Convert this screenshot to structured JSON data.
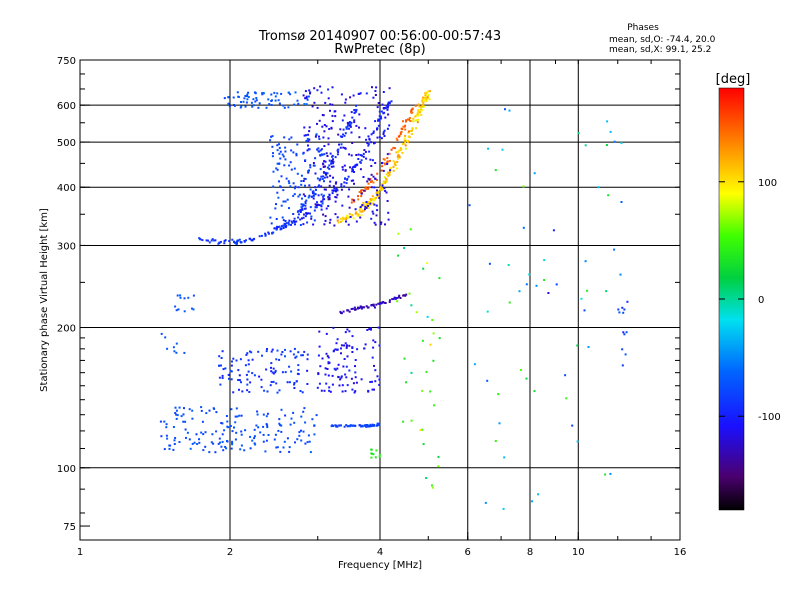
{
  "chart_data": {
    "type": "scatter",
    "title": "Tromsø 20140907 00:56:00-00:57:43",
    "subtitle": "RwPretec (8p)",
    "stats": {
      "heading": "Phases",
      "line1": "mean, sd,O: -74.4, 20.0",
      "line2": "mean, sd,X:  99.1, 25.2"
    },
    "xlabel": "Frequency [MHz]",
    "ylabel": "Stationary phase Virtual Height [km]",
    "x_scale": "log",
    "y_scale": "log",
    "xlim": [
      1,
      16
    ],
    "ylim": [
      70,
      750
    ],
    "x_ticks": [
      {
        "value": 1,
        "label": "1"
      },
      {
        "value": 2,
        "label": "2"
      },
      {
        "value": 4,
        "label": "4"
      },
      {
        "value": 6,
        "label": "6"
      },
      {
        "value": 8,
        "label": "8"
      },
      {
        "value": 10,
        "label": "10"
      },
      {
        "value": 16,
        "label": "16"
      }
    ],
    "x_grid": [
      2,
      4,
      6,
      8,
      10
    ],
    "y_ticks": [
      {
        "value": 75,
        "label": "75"
      },
      {
        "value": 100,
        "label": "100"
      },
      {
        "value": 200,
        "label": "200"
      },
      {
        "value": 300,
        "label": "300"
      },
      {
        "value": 400,
        "label": "400"
      },
      {
        "value": 500,
        "label": "500"
      },
      {
        "value": 600,
        "label": "600"
      },
      {
        "value": 750,
        "label": "750"
      }
    ],
    "y_grid": [
      100,
      200,
      300,
      400,
      500,
      600
    ],
    "colorbar": {
      "label": "[deg]",
      "range": [
        -180,
        180
      ],
      "ticks": [
        {
          "value": 100,
          "label": "100"
        },
        {
          "value": 0,
          "label": "0"
        },
        {
          "value": -100,
          "label": "-100"
        }
      ]
    },
    "point_clusters": [
      {
        "kind": "curve",
        "pts": [
          [
            1.75,
            312
          ],
          [
            1.9,
            305
          ],
          [
            2.05,
            305
          ],
          [
            2.2,
            308
          ],
          [
            2.4,
            318
          ],
          [
            2.6,
            335
          ],
          [
            2.8,
            360
          ],
          [
            3.0,
            400
          ],
          [
            3.2,
            450
          ],
          [
            3.4,
            520
          ],
          [
            3.6,
            600
          ]
        ],
        "spread": 0.018,
        "count": 150,
        "phase": [
          -90,
          20
        ]
      },
      {
        "kind": "curve",
        "pts": [
          [
            2.5,
            325
          ],
          [
            2.8,
            345
          ],
          [
            3.1,
            375
          ],
          [
            3.4,
            410
          ],
          [
            3.7,
            470
          ],
          [
            4.0,
            560
          ],
          [
            4.2,
            620
          ]
        ],
        "spread": 0.02,
        "count": 110,
        "phase": [
          -100,
          20
        ]
      },
      {
        "kind": "curve",
        "pts": [
          [
            3.3,
            340
          ],
          [
            3.6,
            350
          ],
          [
            3.9,
            380
          ],
          [
            4.2,
            430
          ],
          [
            4.5,
            500
          ],
          [
            4.8,
            580
          ],
          [
            5.0,
            640
          ]
        ],
        "spread": 0.022,
        "count": 200,
        "phase": [
          110,
          40
        ]
      },
      {
        "kind": "curve",
        "pts": [
          [
            3.5,
            370
          ],
          [
            3.8,
            400
          ],
          [
            4.1,
            450
          ],
          [
            4.4,
            520
          ],
          [
            4.7,
            600
          ]
        ],
        "spread": 0.02,
        "count": 70,
        "phase": [
          150,
          20
        ]
      },
      {
        "kind": "box",
        "x": [
          1.95,
          2.9
        ],
        "y": [
          592,
          640
        ],
        "count": 70,
        "phase": [
          -70,
          20
        ]
      },
      {
        "kind": "box",
        "x": [
          2.8,
          4.2
        ],
        "y": [
          330,
          660
        ],
        "count": 280,
        "phase": [
          -115,
          25
        ]
      },
      {
        "kind": "box",
        "x": [
          2.4,
          3.1
        ],
        "y": [
          330,
          520
        ],
        "count": 120,
        "phase": [
          -80,
          20
        ]
      },
      {
        "kind": "curve",
        "pts": [
          [
            3.3,
            215
          ],
          [
            3.6,
            220
          ],
          [
            3.9,
            223
          ],
          [
            4.2,
            228
          ],
          [
            4.5,
            235
          ]
        ],
        "spread": 0.012,
        "count": 60,
        "phase": [
          -130,
          15
        ]
      },
      {
        "kind": "box",
        "x": [
          3.0,
          4.0
        ],
        "y": [
          145,
          200
        ],
        "count": 110,
        "phase": [
          -110,
          20
        ]
      },
      {
        "kind": "curve",
        "pts": [
          [
            3.2,
            123
          ],
          [
            3.5,
            123
          ],
          [
            3.8,
            123
          ],
          [
            4.0,
            124
          ]
        ],
        "spread": 0.008,
        "count": 60,
        "phase": [
          -80,
          15
        ]
      },
      {
        "kind": "box",
        "x": [
          1.45,
          3.0
        ],
        "y": [
          108,
          135
        ],
        "count": 170,
        "phase": [
          -75,
          20
        ]
      },
      {
        "kind": "box",
        "x": [
          1.9,
          2.9
        ],
        "y": [
          145,
          180
        ],
        "count": 110,
        "phase": [
          -90,
          25
        ]
      },
      {
        "kind": "box",
        "x": [
          1.55,
          1.7
        ],
        "y": [
          215,
          235
        ],
        "count": 12,
        "phase": [
          -70,
          10
        ]
      },
      {
        "kind": "box",
        "x": [
          1.45,
          1.65
        ],
        "y": [
          175,
          195
        ],
        "count": 8,
        "phase": [
          -70,
          10
        ]
      },
      {
        "kind": "box",
        "x": [
          3.8,
          4.0
        ],
        "y": [
          104,
          110
        ],
        "count": 10,
        "phase": [
          20,
          20
        ]
      },
      {
        "kind": "box",
        "x": [
          4.3,
          5.3
        ],
        "y": [
          90,
          330
        ],
        "count": 35,
        "phase": [
          40,
          90
        ]
      },
      {
        "kind": "box",
        "x": [
          6.0,
          12.8
        ],
        "y": [
          80,
          640
        ],
        "count": 60,
        "phase": [
          -20,
          110
        ]
      },
      {
        "kind": "box",
        "x": [
          12.0,
          12.6
        ],
        "y": [
          165,
          230
        ],
        "count": 12,
        "phase": [
          -80,
          30
        ]
      }
    ]
  }
}
